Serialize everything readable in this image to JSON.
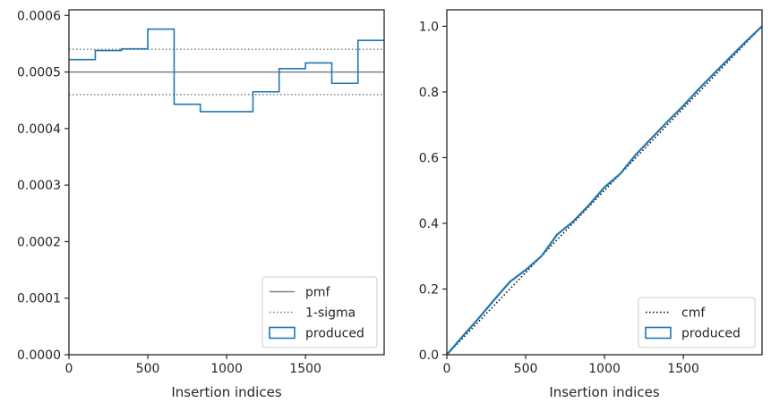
{
  "chart_data": [
    {
      "type": "histogram-step",
      "xlabel": "Insertion indices",
      "ylabel": "",
      "xlim": [
        0,
        1999
      ],
      "ylim": [
        0,
        0.00061
      ],
      "xticks": [
        0,
        500,
        1000,
        1500
      ],
      "yticks": [
        0,
        0.0001,
        0.0002,
        0.0003,
        0.0004,
        0.0005,
        0.0006
      ],
      "ytick_labels": [
        "0.0000",
        "0.0001",
        "0.0002",
        "0.0003",
        "0.0004",
        "0.0005",
        "0.0006"
      ],
      "grid": false,
      "legend_position": "lower-right",
      "reference_lines": [
        {
          "name": "pmf",
          "y": 0.0005,
          "style": "solid",
          "color": "#808080"
        },
        {
          "name": "1-sigma",
          "y": 0.00054,
          "style": "dotted",
          "color": "#808080"
        },
        {
          "name": "1-sigma",
          "y": 0.00046,
          "style": "dotted",
          "color": "#808080"
        }
      ],
      "bin_edges": [
        0,
        167,
        333,
        500,
        667,
        833,
        1000,
        1167,
        1333,
        1500,
        1667,
        1833,
        1999
      ],
      "series": [
        {
          "name": "produced",
          "color": "#1f77b4",
          "values": [
            0.000522,
            0.000538,
            0.000541,
            0.000576,
            0.000443,
            0.00043,
            0.00043,
            0.000465,
            0.000506,
            0.000516,
            0.00048,
            0.000556
          ]
        }
      ],
      "legend": [
        {
          "label": "pmf",
          "kind": "solid-line",
          "color": "#808080"
        },
        {
          "label": "1-sigma",
          "kind": "dotted-line",
          "color": "#808080"
        },
        {
          "label": "produced",
          "kind": "box",
          "color": "#1f77b4"
        }
      ]
    },
    {
      "type": "line",
      "xlabel": "Insertion indices",
      "ylabel": "",
      "xlim": [
        0,
        1999
      ],
      "ylim": [
        0,
        1.05
      ],
      "xticks": [
        0,
        500,
        1000,
        1500
      ],
      "yticks": [
        0,
        0.2,
        0.4,
        0.6,
        0.8,
        1.0
      ],
      "ytick_labels": [
        "0.0",
        "0.2",
        "0.4",
        "0.6",
        "0.8",
        "1.0"
      ],
      "grid": false,
      "legend_position": "lower-right",
      "series": [
        {
          "name": "cmf",
          "style": "dotted",
          "color": "#000000",
          "x": [
            0,
            1999
          ],
          "y": [
            0,
            1.0
          ]
        },
        {
          "name": "produced",
          "style": "solid",
          "color": "#1f77b4",
          "x": [
            0,
            100,
            200,
            300,
            400,
            500,
            600,
            700,
            800,
            900,
            1000,
            1100,
            1200,
            1300,
            1400,
            1500,
            1600,
            1700,
            1800,
            1900,
            1999
          ],
          "y": [
            0,
            0.056,
            0.11,
            0.167,
            0.222,
            0.258,
            0.3,
            0.366,
            0.405,
            0.455,
            0.51,
            0.551,
            0.61,
            0.66,
            0.71,
            0.758,
            0.81,
            0.859,
            0.907,
            0.955,
            1.0
          ]
        }
      ],
      "legend": [
        {
          "label": "cmf",
          "kind": "dotted-line",
          "color": "#000000"
        },
        {
          "label": "produced",
          "kind": "box",
          "color": "#1f77b4"
        }
      ]
    }
  ]
}
